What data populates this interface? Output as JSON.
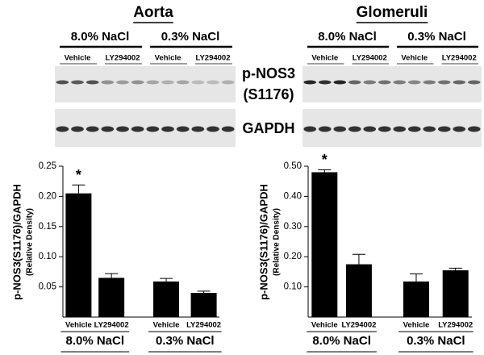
{
  "blots": {
    "panels": [
      {
        "title": "Aorta",
        "groups": [
          "8.0% NaCl",
          "0.3% NaCl"
        ],
        "lanes": [
          "Vehicle",
          "LY294002",
          "Vehicle",
          "LY294002"
        ]
      },
      {
        "title": "Glomeruli",
        "groups": [
          "8.0% NaCl",
          "0.3% NaCl"
        ],
        "lanes": [
          "Vehicle",
          "LY294002",
          "Vehicle",
          "LY294002"
        ]
      }
    ],
    "rows": [
      [
        "p-NOS3",
        "(S1176)"
      ],
      [
        "GAPDH"
      ]
    ]
  },
  "chart_data": [
    {
      "type": "bar",
      "ylabel": [
        "p-NOS3(S1176)/GAPDH",
        "(Relative Density)"
      ],
      "categories": [
        "Vehicle",
        "LY294002",
        "Vehicle",
        "LY294002"
      ],
      "groups": [
        "8.0% NaCl",
        "0.3% NaCl"
      ],
      "values": [
        0.205,
        0.065,
        0.059,
        0.04
      ],
      "errors": [
        0.014,
        0.007,
        0.005,
        0.003
      ],
      "value_annotations": [
        "*",
        null,
        null,
        null
      ],
      "color": "#000000",
      "ylim": [
        0,
        0.25
      ],
      "yticks": [
        0.05,
        {
          "value": 0.1,
          "label": "0.10"
        },
        0.15,
        {
          "value": 0.2,
          "label": "0.20"
        },
        0.25
      ]
    },
    {
      "type": "bar",
      "ylabel": [
        "p-NOS3(S1176)/GAPDH",
        "(Relative Density)"
      ],
      "categories": [
        "Vehicle",
        "LY294002",
        "Vehicle",
        "LY294002"
      ],
      "groups": [
        "8.0% NaCl",
        "0.3% NaCl"
      ],
      "values": [
        0.48,
        0.175,
        0.118,
        0.155
      ],
      "errors": [
        0.008,
        0.033,
        0.025,
        0.007
      ],
      "value_annotations": [
        "*",
        null,
        null,
        null
      ],
      "color": "#000000",
      "ylim": [
        0,
        0.5
      ],
      "yticks": [
        {
          "value": 0.1,
          "label": "0.10"
        },
        {
          "value": 0.2,
          "label": "0.20"
        },
        {
          "value": 0.3,
          "label": "0.30"
        },
        {
          "value": 0.4,
          "label": "0.40"
        },
        {
          "value": 0.5,
          "label": "0.50"
        }
      ]
    }
  ]
}
